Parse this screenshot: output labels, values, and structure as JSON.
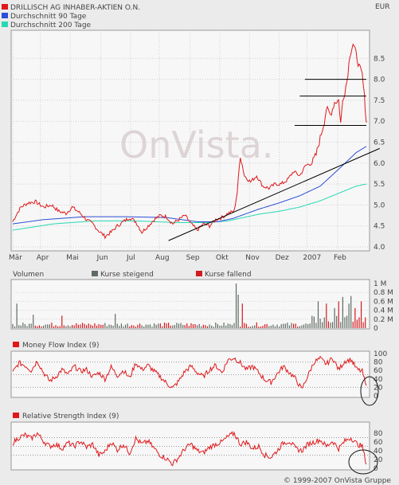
{
  "currency": "EUR",
  "copyright": "© 1999-2007 OnVista Gruppe",
  "watermark": "OnVista.",
  "legend": [
    {
      "label": "DRILLISCH AG INHABER-AKTIEN O.N.",
      "color": "#e0181b"
    },
    {
      "label": "Durchschnitt 90 Tage",
      "color": "#2b4fd6"
    },
    {
      "label": "Durchschnitt 200 Tage",
      "color": "#27d9b2"
    }
  ],
  "chart_data": [
    {
      "type": "line",
      "title": "",
      "x_labels": [
        "Mär",
        "Apr",
        "Mai",
        "Jun",
        "Jul",
        "Aug",
        "Sep",
        "Okt",
        "Nov",
        "Dez",
        "2007",
        "Feb"
      ],
      "y_ticks": [
        "4.0",
        "4.5",
        "5.0",
        "5.5",
        "6.0",
        "6.5",
        "7.0",
        "7.5",
        "8.0",
        "8.5"
      ],
      "ylim": [
        4.0,
        9.0
      ],
      "price_anchors": [
        [
          0,
          4.6
        ],
        [
          3,
          4.75
        ],
        [
          8,
          4.95
        ],
        [
          15,
          5.05
        ],
        [
          22,
          5.08
        ],
        [
          30,
          4.95
        ],
        [
          38,
          5.0
        ],
        [
          45,
          4.85
        ],
        [
          52,
          4.8
        ],
        [
          58,
          4.95
        ],
        [
          66,
          4.8
        ],
        [
          72,
          4.65
        ],
        [
          78,
          4.55
        ],
        [
          84,
          4.38
        ],
        [
          90,
          4.25
        ],
        [
          96,
          4.35
        ],
        [
          102,
          4.5
        ],
        [
          108,
          4.6
        ],
        [
          114,
          4.7
        ],
        [
          120,
          4.6
        ],
        [
          126,
          4.35
        ],
        [
          132,
          4.5
        ],
        [
          138,
          4.65
        ],
        [
          144,
          4.75
        ],
        [
          150,
          4.72
        ],
        [
          156,
          4.55
        ],
        [
          162,
          4.65
        ],
        [
          168,
          4.75
        ],
        [
          174,
          4.55
        ],
        [
          180,
          4.4
        ],
        [
          186,
          4.55
        ],
        [
          192,
          4.5
        ],
        [
          198,
          4.65
        ],
        [
          204,
          4.7
        ],
        [
          210,
          4.8
        ],
        [
          216,
          4.85
        ],
        [
          219,
          5.3
        ],
        [
          222,
          6.2
        ],
        [
          226,
          5.7
        ],
        [
          232,
          5.55
        ],
        [
          238,
          5.7
        ],
        [
          244,
          5.45
        ],
        [
          250,
          5.4
        ],
        [
          256,
          5.5
        ],
        [
          262,
          5.5
        ],
        [
          268,
          5.6
        ],
        [
          274,
          5.8
        ],
        [
          280,
          5.7
        ],
        [
          286,
          5.95
        ],
        [
          292,
          6.0
        ],
        [
          296,
          6.2
        ],
        [
          300,
          6.6
        ],
        [
          304,
          7.0
        ],
        [
          306,
          7.3
        ],
        [
          310,
          7.15
        ],
        [
          314,
          7.45
        ],
        [
          318,
          7.5
        ],
        [
          320,
          6.95
        ],
        [
          322,
          7.5
        ],
        [
          326,
          7.95
        ],
        [
          329,
          8.6
        ],
        [
          332,
          8.85
        ],
        [
          335,
          8.6
        ],
        [
          338,
          8.3
        ],
        [
          341,
          8.1
        ],
        [
          343,
          7.6
        ],
        [
          345,
          7.0
        ]
      ],
      "ma90_anchors": [
        [
          0,
          4.55
        ],
        [
          30,
          4.65
        ],
        [
          70,
          4.72
        ],
        [
          110,
          4.72
        ],
        [
          150,
          4.7
        ],
        [
          180,
          4.6
        ],
        [
          200,
          4.6
        ],
        [
          215,
          4.68
        ],
        [
          240,
          4.9
        ],
        [
          260,
          5.05
        ],
        [
          280,
          5.22
        ],
        [
          300,
          5.45
        ],
        [
          320,
          5.9
        ],
        [
          335,
          6.25
        ],
        [
          345,
          6.4
        ]
      ],
      "ma200_anchors": [
        [
          0,
          4.4
        ],
        [
          40,
          4.55
        ],
        [
          80,
          4.62
        ],
        [
          120,
          4.62
        ],
        [
          160,
          4.58
        ],
        [
          190,
          4.58
        ],
        [
          210,
          4.62
        ],
        [
          240,
          4.78
        ],
        [
          260,
          4.85
        ],
        [
          280,
          4.95
        ],
        [
          300,
          5.1
        ],
        [
          320,
          5.3
        ],
        [
          335,
          5.45
        ],
        [
          345,
          5.5
        ]
      ],
      "trend_lines": [
        {
          "from": [
            152,
            4.15
          ],
          "to": [
            358,
            6.35
          ]
        },
        {
          "from": [
            285,
            8.0
          ],
          "to": [
            345,
            8.0
          ]
        },
        {
          "from": [
            280,
            7.6
          ],
          "to": [
            345,
            7.6
          ]
        },
        {
          "from": [
            275,
            6.9
          ],
          "to": [
            345,
            6.9
          ]
        }
      ]
    },
    {
      "type": "bar",
      "title": "Volumen",
      "legend": [
        {
          "label": "Kurse steigend",
          "color": "#5e6b62"
        },
        {
          "label": "Kurse fallend",
          "color": "#d11b1f"
        }
      ],
      "y_ticks": [
        "1 M",
        "0.8 M",
        "0.6 M",
        "0.4 M",
        "0.2 M",
        "0"
      ],
      "ylim": [
        0,
        1000000
      ],
      "spikes": [
        [
          5,
          0.55
        ],
        [
          20,
          0.3
        ],
        [
          48,
          0.28
        ],
        [
          100,
          0.32
        ],
        [
          218,
          1.0
        ],
        [
          221,
          0.75
        ],
        [
          224,
          0.55
        ],
        [
          299,
          0.6
        ],
        [
          306,
          0.55
        ],
        [
          314,
          0.45
        ],
        [
          318,
          0.6
        ],
        [
          322,
          0.7
        ],
        [
          328,
          0.55
        ],
        [
          331,
          0.72
        ],
        [
          335,
          0.45
        ],
        [
          341,
          0.6
        ]
      ],
      "base_level": 0.08
    },
    {
      "type": "line",
      "title": "Money Flow Index (9)",
      "y_ticks": [
        "100",
        "80",
        "60",
        "40",
        "20",
        "0"
      ],
      "ylim": [
        0,
        100
      ],
      "reference_lines": [
        80,
        50,
        20
      ],
      "anchors": [
        [
          0,
          55
        ],
        [
          6,
          78
        ],
        [
          12,
          72
        ],
        [
          18,
          60
        ],
        [
          24,
          83
        ],
        [
          30,
          55
        ],
        [
          36,
          35
        ],
        [
          42,
          45
        ],
        [
          48,
          62
        ],
        [
          54,
          50
        ],
        [
          60,
          70
        ],
        [
          66,
          58
        ],
        [
          72,
          62
        ],
        [
          78,
          45
        ],
        [
          84,
          55
        ],
        [
          90,
          40
        ],
        [
          96,
          68
        ],
        [
          102,
          48
        ],
        [
          108,
          60
        ],
        [
          114,
          42
        ],
        [
          120,
          78
        ],
        [
          126,
          62
        ],
        [
          132,
          72
        ],
        [
          138,
          58
        ],
        [
          144,
          45
        ],
        [
          150,
          30
        ],
        [
          156,
          18
        ],
        [
          162,
          35
        ],
        [
          168,
          58
        ],
        [
          174,
          70
        ],
        [
          180,
          55
        ],
        [
          186,
          45
        ],
        [
          192,
          62
        ],
        [
          198,
          72
        ],
        [
          204,
          55
        ],
        [
          210,
          85
        ],
        [
          216,
          90
        ],
        [
          222,
          78
        ],
        [
          228,
          62
        ],
        [
          234,
          70
        ],
        [
          240,
          55
        ],
        [
          246,
          38
        ],
        [
          252,
          32
        ],
        [
          258,
          52
        ],
        [
          264,
          70
        ],
        [
          270,
          55
        ],
        [
          276,
          40
        ],
        [
          282,
          15
        ],
        [
          288,
          48
        ],
        [
          294,
          80
        ],
        [
          300,
          88
        ],
        [
          306,
          75
        ],
        [
          312,
          90
        ],
        [
          318,
          62
        ],
        [
          324,
          82
        ],
        [
          330,
          86
        ],
        [
          336,
          62
        ],
        [
          341,
          58
        ],
        [
          345,
          20
        ]
      ]
    },
    {
      "type": "line",
      "title": "Relative Strength Index (9)",
      "y_ticks": [
        "80",
        "60",
        "40",
        "20",
        "0"
      ],
      "ylim": [
        0,
        100
      ],
      "reference_lines": [
        70,
        50,
        30
      ],
      "anchors": [
        [
          0,
          58
        ],
        [
          6,
          70
        ],
        [
          12,
          76
        ],
        [
          18,
          68
        ],
        [
          24,
          80
        ],
        [
          30,
          62
        ],
        [
          36,
          50
        ],
        [
          42,
          55
        ],
        [
          48,
          45
        ],
        [
          54,
          58
        ],
        [
          60,
          50
        ],
        [
          66,
          62
        ],
        [
          72,
          48
        ],
        [
          78,
          55
        ],
        [
          84,
          30
        ],
        [
          90,
          38
        ],
        [
          96,
          60
        ],
        [
          102,
          42
        ],
        [
          108,
          55
        ],
        [
          114,
          35
        ],
        [
          120,
          68
        ],
        [
          126,
          55
        ],
        [
          132,
          62
        ],
        [
          138,
          45
        ],
        [
          144,
          30
        ],
        [
          150,
          22
        ],
        [
          156,
          10
        ],
        [
          162,
          25
        ],
        [
          168,
          45
        ],
        [
          174,
          55
        ],
        [
          180,
          40
        ],
        [
          186,
          35
        ],
        [
          192,
          48
        ],
        [
          198,
          55
        ],
        [
          204,
          60
        ],
        [
          210,
          72
        ],
        [
          216,
          80
        ],
        [
          222,
          55
        ],
        [
          228,
          60
        ],
        [
          234,
          45
        ],
        [
          240,
          50
        ],
        [
          246,
          30
        ],
        [
          252,
          25
        ],
        [
          258,
          40
        ],
        [
          264,
          58
        ],
        [
          270,
          62
        ],
        [
          276,
          45
        ],
        [
          282,
          40
        ],
        [
          288,
          55
        ],
        [
          294,
          60
        ],
        [
          300,
          65
        ],
        [
          306,
          50
        ],
        [
          312,
          62
        ],
        [
          318,
          45
        ],
        [
          324,
          62
        ],
        [
          330,
          70
        ],
        [
          336,
          55
        ],
        [
          341,
          50
        ],
        [
          345,
          10
        ]
      ]
    }
  ]
}
